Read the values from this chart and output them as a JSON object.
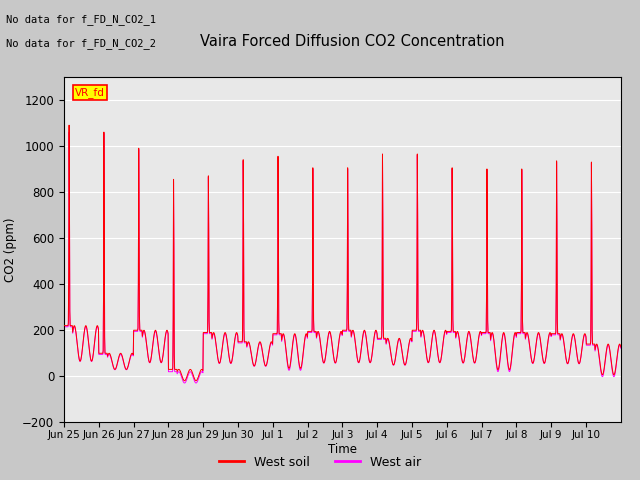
{
  "title": "Vaira Forced Diffusion CO2 Concentration",
  "ylabel": "CO2 (ppm)",
  "xlabel": "Time",
  "ylim": [
    -200,
    1300
  ],
  "yticks": [
    -200,
    0,
    200,
    400,
    600,
    800,
    1000,
    1200
  ],
  "n_days": 16,
  "annotations": [
    "No data for f_FD_N_CO2_1",
    "No data for f_FD_N_CO2_2"
  ],
  "legend_label_vr": "VR_fd",
  "legend_label_soil": "West soil",
  "legend_label_air": "West air",
  "soil_color": "#ff0000",
  "air_color": "#ff00ff",
  "plot_bg": "#e8e8e8",
  "fig_bg": "#c8c8c8",
  "tick_labels": [
    "Jun 25",
    "Jun 26",
    "Jun 27",
    "Jun 28",
    "Jun 29",
    "Jun 30",
    "Jul 1",
    "Jul 2",
    "Jul 3",
    "Jul 4",
    "Jul 5",
    "Jul 6",
    "Jul 7",
    "Jul 8",
    "Jul 9",
    "Jul 10"
  ],
  "soil_peaks": [
    1090,
    1060,
    990,
    855,
    870,
    940,
    955,
    905,
    905,
    965,
    965,
    905,
    900,
    900,
    935,
    930
  ],
  "air_peaks": [
    1060,
    1055,
    985,
    845,
    865,
    935,
    950,
    900,
    900,
    960,
    960,
    900,
    895,
    895,
    930,
    925
  ],
  "soil_base": [
    220,
    100,
    200,
    30,
    190,
    150,
    185,
    195,
    200,
    165,
    200,
    195,
    190,
    190,
    185,
    140
  ],
  "air_base": [
    215,
    95,
    195,
    20,
    185,
    145,
    180,
    190,
    195,
    160,
    195,
    190,
    185,
    185,
    180,
    135
  ],
  "soil_neg_mins": [
    0,
    0,
    0,
    -40,
    0,
    0,
    -30,
    0,
    0,
    0,
    0,
    0,
    -40,
    0,
    0,
    -50
  ],
  "air_neg_mins": [
    0,
    0,
    0,
    -50,
    0,
    0,
    -40,
    0,
    0,
    0,
    0,
    0,
    -50,
    0,
    0,
    -60
  ]
}
